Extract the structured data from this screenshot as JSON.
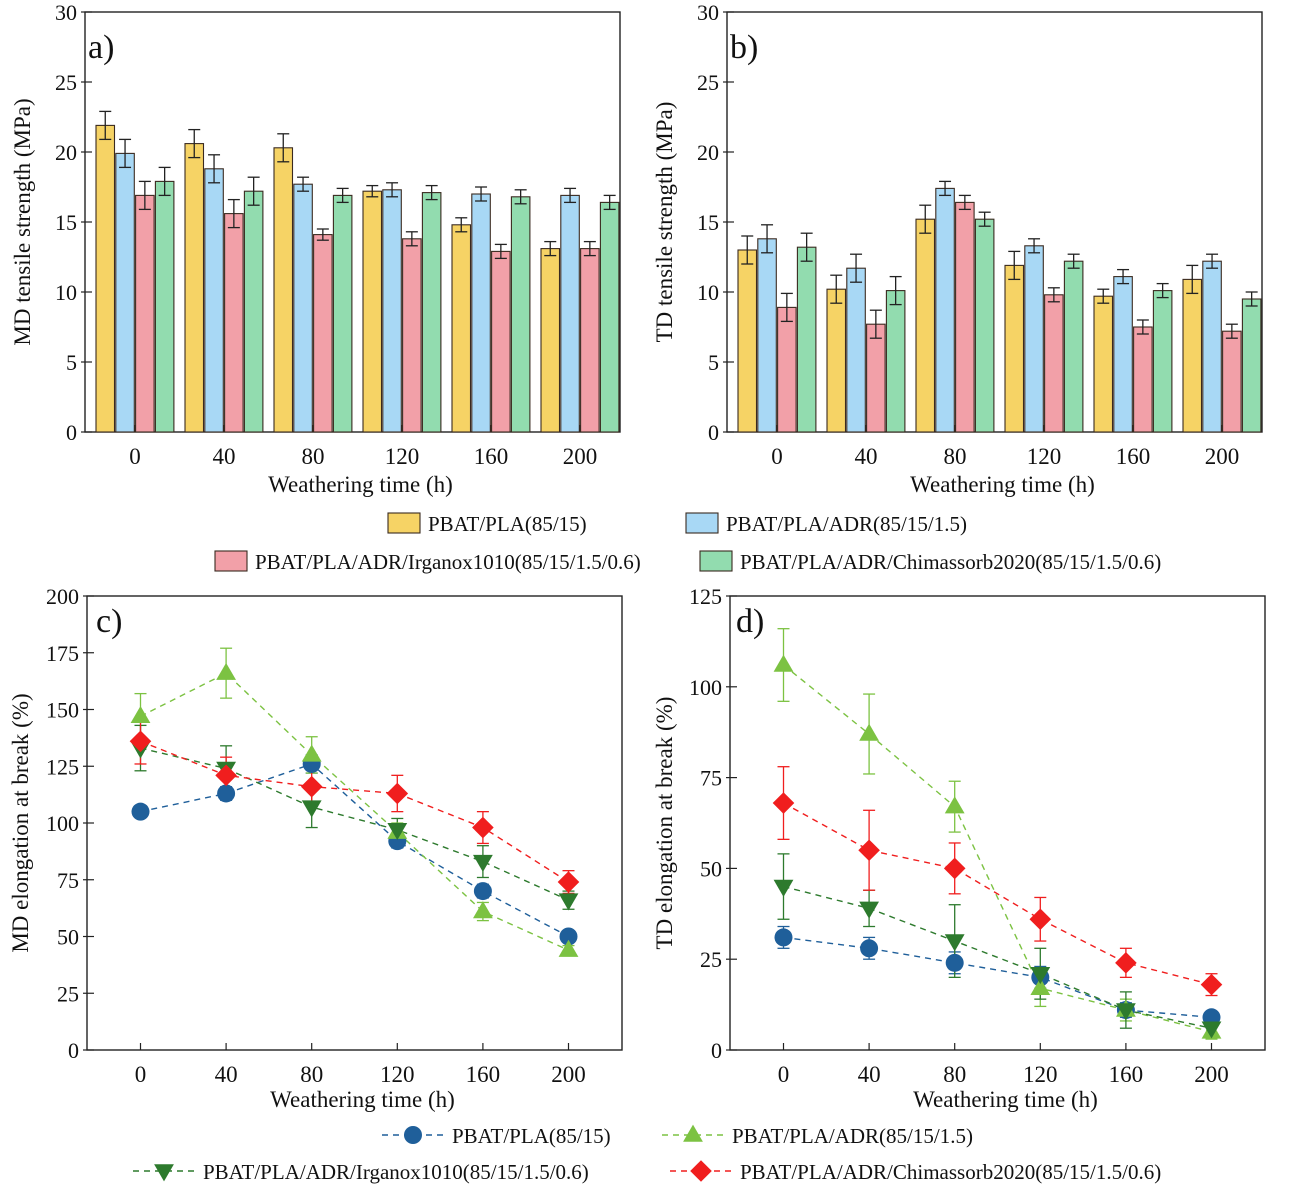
{
  "legend_bars": [
    {
      "label": "PBAT/PLA(85/15)",
      "color": "#f6d365"
    },
    {
      "label": "PBAT/PLA/ADR(85/15/1.5)",
      "color": "#a8d8f5"
    },
    {
      "label": "PBAT/PLA/ADR/Irganox1010(85/15/1.5/0.6)",
      "color": "#f2a0a8"
    },
    {
      "label": "PBAT/PLA/ADR/Chimassorb2020(85/15/1.5/0.6)",
      "color": "#92dcaf"
    }
  ],
  "legend_lines": [
    {
      "label": "PBAT/PLA(85/15)",
      "color": "#1f5f9a",
      "marker": "circle"
    },
    {
      "label": "PBAT/PLA/ADR(85/15/1.5)",
      "color": "#7cc242",
      "marker": "triangle-up"
    },
    {
      "label": "PBAT/PLA/ADR/Irganox1010(85/15/1.5/0.6)",
      "color": "#2d7a2d",
      "marker": "triangle-down"
    },
    {
      "label": "PBAT/PLA/ADR/Chimassorb2020(85/15/1.5/0.6)",
      "color": "#f01e1e",
      "marker": "diamond"
    }
  ],
  "chart_data": [
    {
      "panel": "a)",
      "type": "bar",
      "xlabel": "Weathering time (h)",
      "ylabel": "MD tensile strength (MPa)",
      "ylim": [
        0,
        30
      ],
      "yticks": [
        "0",
        "5",
        "10",
        "15",
        "20",
        "25",
        "30"
      ],
      "categories": [
        "0",
        "40",
        "80",
        "120",
        "160",
        "200"
      ],
      "series": [
        {
          "name": "PBAT/PLA(85/15)",
          "values": [
            21.9,
            20.6,
            20.3,
            17.2,
            14.8,
            13.1
          ],
          "errors": [
            1.0,
            1.0,
            1.0,
            0.4,
            0.5,
            0.5
          ]
        },
        {
          "name": "PBAT/PLA/ADR(85/15/1.5)",
          "values": [
            19.9,
            18.8,
            17.7,
            17.3,
            17.0,
            16.9
          ],
          "errors": [
            1.0,
            1.0,
            0.5,
            0.5,
            0.5,
            0.5
          ]
        },
        {
          "name": "PBAT/PLA/ADR/Irganox1010(85/15/1.5/0.6)",
          "values": [
            16.9,
            15.6,
            14.1,
            13.8,
            12.9,
            13.1
          ],
          "errors": [
            1.0,
            1.0,
            0.4,
            0.5,
            0.5,
            0.5
          ]
        },
        {
          "name": "PBAT/PLA/ADR/Chimassorb2020(85/15/1.5/0.6)",
          "values": [
            17.9,
            17.2,
            16.9,
            17.1,
            16.8,
            16.4
          ],
          "errors": [
            1.0,
            1.0,
            0.5,
            0.5,
            0.5,
            0.5
          ]
        }
      ]
    },
    {
      "panel": "b)",
      "type": "bar",
      "xlabel": "Weathering time (h)",
      "ylabel": "TD tensile strength (MPa)",
      "ylim": [
        0,
        30
      ],
      "yticks": [
        "0",
        "5",
        "10",
        "15",
        "20",
        "25",
        "30"
      ],
      "categories": [
        "0",
        "40",
        "80",
        "120",
        "160",
        "200"
      ],
      "series": [
        {
          "name": "PBAT/PLA(85/15)",
          "values": [
            13.0,
            10.2,
            15.2,
            11.9,
            9.7,
            10.9
          ],
          "errors": [
            1.0,
            1.0,
            1.0,
            1.0,
            0.5,
            1.0
          ]
        },
        {
          "name": "PBAT/PLA/ADR(85/15/1.5)",
          "values": [
            13.8,
            11.7,
            17.4,
            13.3,
            11.1,
            12.2
          ],
          "errors": [
            1.0,
            1.0,
            0.5,
            0.5,
            0.5,
            0.5
          ]
        },
        {
          "name": "PBAT/PLA/ADR/Irganox1010(85/15/1.5/0.6)",
          "values": [
            8.9,
            7.7,
            16.4,
            9.8,
            7.5,
            7.2
          ],
          "errors": [
            1.0,
            1.0,
            0.5,
            0.5,
            0.5,
            0.5
          ]
        },
        {
          "name": "PBAT/PLA/ADR/Chimassorb2020(85/15/1.5/0.6)",
          "values": [
            13.2,
            10.1,
            15.2,
            12.2,
            10.1,
            9.5
          ],
          "errors": [
            1.0,
            1.0,
            0.5,
            0.5,
            0.5,
            0.5
          ]
        }
      ]
    },
    {
      "panel": "c)",
      "type": "line",
      "xlabel": "Weathering time (h)",
      "ylabel": "MD elongation at break (%)",
      "xlim": [
        -25,
        225
      ],
      "ylim": [
        0,
        200
      ],
      "x": [
        0,
        40,
        80,
        120,
        160,
        200
      ],
      "xticks": [
        "0",
        "40",
        "80",
        "120",
        "160",
        "200"
      ],
      "yticks": [
        "0",
        "25",
        "50",
        "75",
        "100",
        "125",
        "150",
        "175",
        "200"
      ],
      "series": [
        {
          "name": "PBAT/PLA(85/15)",
          "values": [
            105,
            113,
            126,
            92,
            70,
            50
          ],
          "errors": [
            2,
            3,
            4,
            3,
            3,
            2
          ]
        },
        {
          "name": "PBAT/PLA/ADR(85/15/1.5)",
          "values": [
            147,
            166,
            130,
            96,
            61,
            44
          ],
          "errors": [
            10,
            11,
            8,
            4,
            4,
            2
          ]
        },
        {
          "name": "PBAT/PLA/ADR/Irganox1010(85/15/1.5/0.6)",
          "values": [
            133,
            124,
            107,
            97,
            83,
            66
          ],
          "errors": [
            10,
            10,
            9,
            5,
            7,
            4
          ]
        },
        {
          "name": "PBAT/PLA/ADR/Chimassorb2020(85/15/1.5/0.6)",
          "values": [
            136,
            121,
            116,
            113,
            98,
            74
          ],
          "errors": [
            10,
            8,
            8,
            8,
            7,
            5
          ]
        }
      ]
    },
    {
      "panel": "d)",
      "type": "line",
      "xlabel": "Weathering time (h)",
      "ylabel": "TD elongation at break (%)",
      "xlim": [
        -25,
        225
      ],
      "ylim": [
        0,
        125
      ],
      "x": [
        0,
        40,
        80,
        120,
        160,
        200
      ],
      "xticks": [
        "0",
        "40",
        "80",
        "120",
        "160",
        "200"
      ],
      "yticks": [
        "0",
        "25",
        "50",
        "75",
        "100",
        "125"
      ],
      "series": [
        {
          "name": "PBAT/PLA(85/15)",
          "values": [
            31,
            28,
            24,
            20,
            11,
            9
          ],
          "errors": [
            3,
            3,
            3,
            3,
            2,
            1
          ]
        },
        {
          "name": "PBAT/PLA/ADR(85/15/1.5)",
          "values": [
            106,
            87,
            67,
            17,
            11,
            5
          ],
          "errors": [
            10,
            11,
            7,
            5,
            3,
            2
          ]
        },
        {
          "name": "PBAT/PLA/ADR/Irganox1010(85/15/1.5/0.6)",
          "values": [
            45,
            39,
            30,
            21,
            11,
            6
          ],
          "errors": [
            9,
            5,
            10,
            7,
            5,
            2
          ]
        },
        {
          "name": "PBAT/PLA/ADR/Chimassorb2020(85/15/1.5/0.6)",
          "values": [
            68,
            55,
            50,
            36,
            24,
            18
          ],
          "errors": [
            10,
            11,
            7,
            6,
            4,
            3
          ]
        }
      ]
    }
  ]
}
